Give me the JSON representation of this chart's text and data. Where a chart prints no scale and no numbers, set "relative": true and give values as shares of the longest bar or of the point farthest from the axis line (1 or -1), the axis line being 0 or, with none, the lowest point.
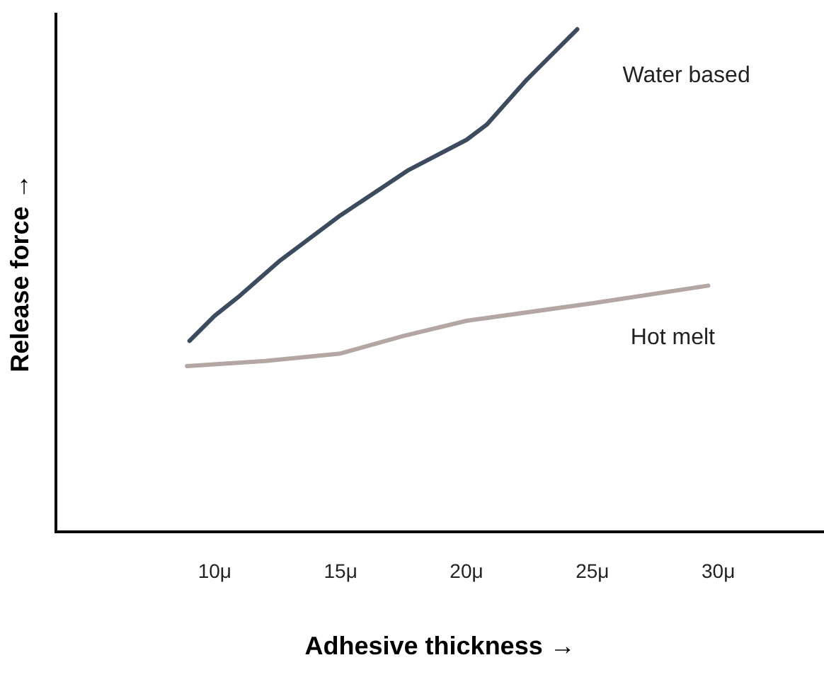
{
  "chart_data": {
    "type": "line",
    "relative": true,
    "xlabel": "Adhesive thickness →",
    "ylabel": "Release force →",
    "xlim": [
      3.7,
      34.2
    ],
    "xticks": [
      {
        "value": 10,
        "label": "10μ"
      },
      {
        "value": 15,
        "label": "15μ"
      },
      {
        "value": 20,
        "label": "20μ"
      },
      {
        "value": 25,
        "label": "25μ"
      },
      {
        "value": 30,
        "label": "30μ"
      }
    ],
    "grid": false,
    "legend": false,
    "marker": "none",
    "line_style": "solid",
    "series": [
      {
        "name": "Water based",
        "color": "#3d4b5e",
        "x": [
          9,
          10,
          11,
          12.6,
          15,
          17.7,
          20,
          20.8,
          22.4,
          24.4
        ],
        "values": [
          0.38,
          0.43,
          0.47,
          0.54,
          0.63,
          0.72,
          0.78,
          0.81,
          0.9,
          1.0
        ]
      },
      {
        "name": "Hot melt",
        "color": "#b3a6a3",
        "x": [
          8.9,
          12,
          15,
          17.5,
          20,
          25,
          29.6
        ],
        "values": [
          0.33,
          0.34,
          0.355,
          0.39,
          0.42,
          0.455,
          0.49
        ]
      }
    ]
  }
}
